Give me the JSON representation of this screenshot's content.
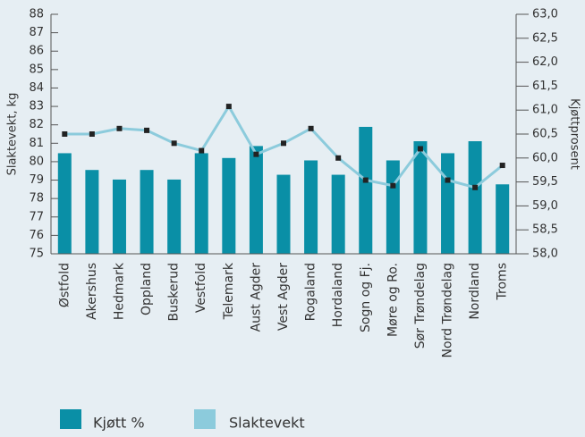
{
  "chart_data": {
    "type": "bar",
    "ylabel": "Slaktevekt, kg",
    "y2label": "Kjøttprosent",
    "categories": [
      "Østfold",
      "Akershus",
      "Hedmark",
      "Oppland",
      "Buskerud",
      "Vestfold",
      "Telemark",
      "Aust Agder",
      "Vest Agder",
      "Rogaland",
      "Hordaland",
      "Sogn og Fj.",
      "Møre og Ro.",
      "Sør Trøndelag",
      "Nord Trøndelag",
      "Nordland",
      "Troms"
    ],
    "series": [
      {
        "name": "Kjøtt %",
        "type": "bar",
        "axis": "y2",
        "color": "#0a8fa6",
        "values": [
          60.1,
          59.75,
          59.55,
          59.75,
          59.55,
          60.1,
          60.0,
          60.25,
          59.65,
          59.95,
          59.65,
          60.65,
          59.95,
          60.35,
          60.1,
          60.35,
          59.45
        ]
      },
      {
        "name": "Slaktevekt",
        "type": "line",
        "color": "#8ccbdc",
        "marker_color": "#222222",
        "values": [
          81.5,
          81.5,
          81.8,
          81.7,
          81.0,
          80.6,
          83.0,
          80.4,
          81.0,
          81.8,
          80.2,
          79.0,
          78.7,
          80.7,
          79.0,
          78.6,
          79.8
        ]
      }
    ],
    "ylim": [
      75,
      88
    ],
    "yticks": [
      75,
      76,
      77,
      78,
      79,
      80,
      81,
      82,
      83,
      84,
      85,
      86,
      87,
      88
    ],
    "y2lim": [
      58,
      63
    ],
    "y2ticks": [
      {
        "value": 58,
        "label": "58,0"
      },
      {
        "value": 58.5,
        "label": "58,5"
      },
      {
        "value": 59,
        "label": "59,0"
      },
      {
        "value": 59.5,
        "label": "59,5"
      },
      {
        "value": 60,
        "label": "60,0"
      },
      {
        "value": 60.5,
        "label": "60,5"
      },
      {
        "value": 61,
        "label": "61,0"
      },
      {
        "value": 61.5,
        "label": "61,5"
      },
      {
        "value": 62,
        "label": "62,0"
      },
      {
        "value": 62.5,
        "label": "62,5"
      },
      {
        "value": 63,
        "label": "63,0"
      }
    ],
    "legend": "bottom"
  }
}
